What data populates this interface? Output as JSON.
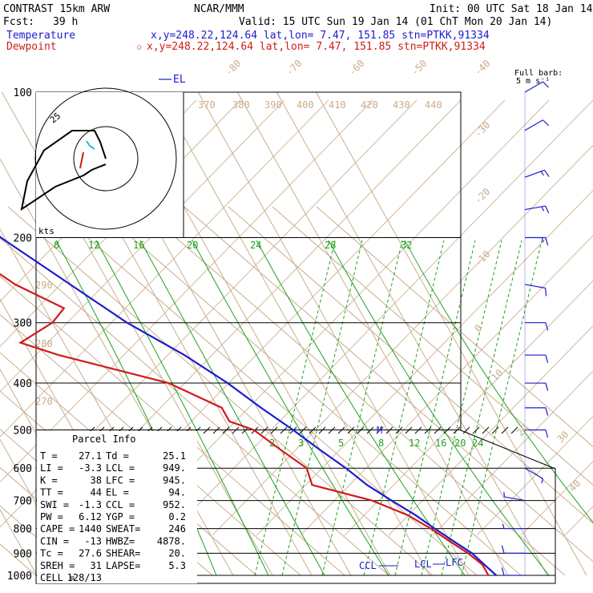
{
  "header": {
    "model": "CONTRAST 15km ARW",
    "center": "NCAR/MMM",
    "init": "Init: 00 UTC Sat 18 Jan 14",
    "fcst_label": "Fcst:",
    "fcst_value": "39 h",
    "valid": "Valid: 15 UTC Sun 19 Jan 14 (01 ChT Mon 20 Jan 14)",
    "temperature_label": "Temperature",
    "temperature_loc": "x,y=248.22,124.64   lat,lon=  7.47, 151.85  stn=PTKK,91334",
    "dewpoint_label": "Dewpoint",
    "dewpoint_loc": "x,y=248.22,124.64   lat,lon=  7.47, 151.85  stn=PTKK,91334",
    "star_glyph": "✩"
  },
  "legend": {
    "el_label": "EL",
    "full_barb_label": "Full barb:",
    "full_barb_units": "5 m s⁻¹"
  },
  "hodograph": {
    "units_label": "kts",
    "ring_label": "25"
  },
  "markers": {
    "ccl": "CCL",
    "lcl": "LCL",
    "lfc": "LFC",
    "el_m": "M"
  },
  "parcel_info": {
    "title": "Parcel Info",
    "rows": [
      {
        "k1": "T  =",
        "v1": "27.1",
        "k2": "Td =",
        "v2": "25.1"
      },
      {
        "k1": "LI =",
        "v1": "-3.3",
        "k2": "LCL =",
        "v2": "949."
      },
      {
        "k1": "K  =",
        "v1": "38",
        "k2": "LFC =",
        "v2": "945."
      },
      {
        "k1": "TT =",
        "v1": "44",
        "k2": "EL  =",
        "v2": "94."
      },
      {
        "k1": "SWI =",
        "v1": "-1.3",
        "k2": "CCL =",
        "v2": "952."
      },
      {
        "k1": "PW =",
        "v1": "6.12",
        "k2": "YGP =",
        "v2": "0.2"
      },
      {
        "k1": "CAPE =",
        "v1": "1440",
        "k2": "SWEAT=",
        "v2": "246"
      },
      {
        "k1": "CIN =",
        "v1": "-13",
        "k2": "HWBZ=",
        "v2": "4878."
      },
      {
        "k1": "Tc =",
        "v1": "27.6",
        "k2": "SHEAR=",
        "v2": "20."
      },
      {
        "k1": "SREH =",
        "v1": "31",
        "k2": "LAPSE=",
        "v2": "5.3"
      },
      {
        "k1": "CELL =",
        "v1": "128/13",
        "k2": "",
        "v2": ""
      }
    ]
  },
  "colors": {
    "temperature": "#1b1bd0",
    "dewpoint": "#d01b1b",
    "isotherm": "#c8ad8c",
    "mixing_ratio": "#1fa11f",
    "isobar": "#000000"
  },
  "chart_data": {
    "type": "line",
    "title": "",
    "xlabel": "",
    "ylabel": "",
    "y_scale": "log-pressure",
    "pressure_levels": [
      100,
      200,
      300,
      400,
      500,
      600,
      700,
      800,
      900,
      1000
    ],
    "isotherm_labels": [
      "-80",
      "-70",
      "-60",
      "-50",
      "-40",
      "-30",
      "-20",
      "-10",
      "0",
      "10",
      "20",
      "30",
      "40"
    ],
    "theta_labels": [
      "370",
      "380",
      "390",
      "400",
      "410",
      "420",
      "430",
      "440",
      "290",
      "280",
      "270"
    ],
    "mixing_ratio_labels_upper": [
      "8",
      "12",
      "16",
      "20",
      "24",
      "28",
      "32"
    ],
    "mixing_ratio_labels_lower": [
      "2",
      "3",
      "5",
      "8",
      "12",
      "16",
      "20",
      "24"
    ],
    "series": [
      {
        "name": "Temperature",
        "color": "#1b1bd0",
        "points": [
          [
            100,
            -81
          ],
          [
            120,
            -66
          ],
          [
            150,
            -60
          ],
          [
            200,
            -51
          ],
          [
            250,
            -40
          ],
          [
            300,
            -31
          ],
          [
            350,
            -21
          ],
          [
            400,
            -14
          ],
          [
            450,
            -9
          ],
          [
            500,
            -4
          ],
          [
            550,
            0
          ],
          [
            600,
            4
          ],
          [
            650,
            7
          ],
          [
            700,
            11
          ],
          [
            750,
            15
          ],
          [
            800,
            18
          ],
          [
            850,
            21
          ],
          [
            900,
            24
          ],
          [
            950,
            25.5
          ],
          [
            1000,
            27
          ]
        ]
      },
      {
        "name": "Dewpoint",
        "color": "#d01b1b",
        "points": [
          [
            100,
            -84
          ],
          [
            120,
            -75
          ],
          [
            150,
            -68
          ],
          [
            200,
            -65
          ],
          [
            250,
            -54
          ],
          [
            280,
            -45
          ],
          [
            300,
            -50
          ],
          [
            330,
            -61
          ],
          [
            350,
            -53
          ],
          [
            400,
            -29
          ],
          [
            450,
            -19
          ],
          [
            480,
            -19
          ],
          [
            500,
            -14
          ],
          [
            550,
            -10
          ],
          [
            600,
            -6
          ],
          [
            650,
            -7
          ],
          [
            700,
            6
          ],
          [
            750,
            13
          ],
          [
            800,
            17
          ],
          [
            850,
            20
          ],
          [
            900,
            23
          ],
          [
            950,
            25
          ],
          [
            1000,
            25
          ]
        ]
      }
    ],
    "wind_barbs": [
      {
        "p": 100,
        "spd": 10,
        "dir": 240
      },
      {
        "p": 120,
        "spd": 10,
        "dir": 240
      },
      {
        "p": 150,
        "spd": 15,
        "dir": 250
      },
      {
        "p": 175,
        "spd": 15,
        "dir": 260
      },
      {
        "p": 200,
        "spd": 15,
        "dir": 270
      },
      {
        "p": 250,
        "spd": 10,
        "dir": 280
      },
      {
        "p": 300,
        "spd": 10,
        "dir": 270
      },
      {
        "p": 350,
        "spd": 10,
        "dir": 270
      },
      {
        "p": 400,
        "spd": 10,
        "dir": 270
      },
      {
        "p": 450,
        "spd": 10,
        "dir": 270
      },
      {
        "p": 500,
        "spd": 10,
        "dir": 270
      },
      {
        "p": 600,
        "spd": 5,
        "dir": 300
      },
      {
        "p": 700,
        "spd": 5,
        "dir": 100
      },
      {
        "p": 800,
        "spd": 5,
        "dir": 90
      },
      {
        "p": 900,
        "spd": 10,
        "dir": 90
      },
      {
        "p": 1000,
        "spd": 10,
        "dir": 90
      }
    ],
    "hodograph_points": [
      [
        0,
        0
      ],
      [
        -2,
        6
      ],
      [
        -4,
        10
      ],
      [
        -12,
        10
      ],
      [
        -22,
        3
      ],
      [
        -28,
        -8
      ],
      [
        -30,
        -18
      ],
      [
        -18,
        -10
      ],
      [
        -8,
        -6
      ],
      [
        -5,
        -4
      ],
      [
        0,
        -2
      ]
    ]
  }
}
